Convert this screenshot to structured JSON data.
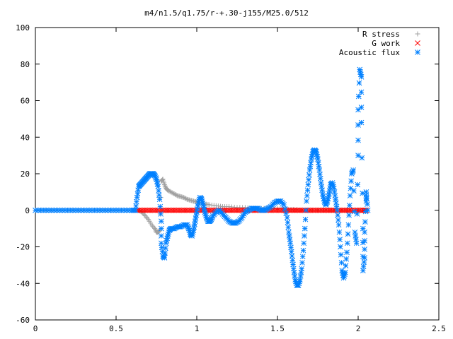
{
  "chart_data": {
    "type": "scatter",
    "title": "m4/n1.5/q1.75/r-+.30-j155/M25.0/512",
    "xlabel": "",
    "ylabel": "",
    "xlim": [
      0,
      2.5
    ],
    "ylim": [
      -60,
      100
    ],
    "grid": false,
    "legend_position": "top-right",
    "x_ticks": [
      0,
      0.5,
      1,
      1.5,
      2,
      2.5
    ],
    "x_tick_labels": [
      "0",
      "0.5",
      "1",
      "1.5",
      "2",
      "2.5"
    ],
    "y_ticks": [
      -60,
      -40,
      -20,
      0,
      20,
      40,
      60,
      80,
      100
    ],
    "y_tick_labels": [
      "-60",
      "-40",
      "-20",
      "0",
      "20",
      "40",
      "60",
      "80",
      "100"
    ],
    "series": [
      {
        "name": "R stress",
        "marker": "plus",
        "color": "#a0a0a0",
        "points": [
          [
            0.0,
            0
          ],
          [
            0.1,
            0
          ],
          [
            0.2,
            0
          ],
          [
            0.3,
            0
          ],
          [
            0.4,
            0
          ],
          [
            0.5,
            0
          ],
          [
            0.6,
            0
          ],
          [
            0.64,
            0
          ],
          [
            0.66,
            -1
          ],
          [
            0.68,
            -3
          ],
          [
            0.7,
            -5
          ],
          [
            0.72,
            -8
          ],
          [
            0.74,
            -10
          ],
          [
            0.75,
            -12
          ],
          [
            0.76,
            -12
          ],
          [
            0.77,
            -11
          ],
          [
            0.78,
            16
          ],
          [
            0.79,
            17
          ],
          [
            0.8,
            14
          ],
          [
            0.81,
            12
          ],
          [
            0.82,
            11
          ],
          [
            0.84,
            10
          ],
          [
            0.86,
            9
          ],
          [
            0.88,
            8
          ],
          [
            0.9,
            7.5
          ],
          [
            0.92,
            7
          ],
          [
            0.94,
            6
          ],
          [
            0.96,
            5.5
          ],
          [
            0.98,
            5
          ],
          [
            1.0,
            4.5
          ],
          [
            1.02,
            4
          ],
          [
            1.05,
            3.5
          ],
          [
            1.08,
            3
          ],
          [
            1.12,
            2.5
          ],
          [
            1.16,
            2
          ],
          [
            1.2,
            2
          ],
          [
            1.25,
            1.5
          ],
          [
            1.3,
            1.5
          ],
          [
            1.35,
            1
          ],
          [
            1.4,
            1
          ],
          [
            1.45,
            1
          ],
          [
            1.5,
            1
          ],
          [
            1.55,
            0.5
          ],
          [
            1.6,
            0.5
          ],
          [
            1.65,
            0
          ],
          [
            1.7,
            0
          ],
          [
            1.75,
            0
          ],
          [
            1.8,
            0
          ],
          [
            1.85,
            0
          ],
          [
            1.9,
            0
          ],
          [
            1.95,
            0
          ],
          [
            2.0,
            0
          ],
          [
            2.05,
            0
          ]
        ]
      },
      {
        "name": "G work",
        "marker": "cross",
        "color": "#ff0000",
        "points": [
          [
            0.62,
            0
          ],
          [
            0.65,
            0
          ],
          [
            0.68,
            0
          ],
          [
            0.71,
            0
          ],
          [
            0.74,
            0
          ],
          [
            0.77,
            0
          ],
          [
            0.8,
            0
          ],
          [
            0.83,
            0
          ],
          [
            0.86,
            0
          ],
          [
            0.89,
            0
          ],
          [
            0.92,
            0
          ],
          [
            0.95,
            0
          ],
          [
            0.98,
            0
          ],
          [
            1.01,
            0
          ],
          [
            1.04,
            0
          ],
          [
            1.07,
            0
          ],
          [
            1.1,
            0
          ],
          [
            1.13,
            0
          ],
          [
            1.16,
            0
          ],
          [
            1.19,
            0
          ],
          [
            1.22,
            0
          ],
          [
            1.25,
            0
          ],
          [
            1.28,
            0
          ],
          [
            1.31,
            0
          ],
          [
            1.34,
            0
          ],
          [
            1.37,
            0
          ],
          [
            1.4,
            0
          ],
          [
            1.43,
            0
          ],
          [
            1.46,
            0
          ],
          [
            1.49,
            0
          ],
          [
            1.52,
            0
          ],
          [
            1.55,
            0
          ],
          [
            1.58,
            0
          ],
          [
            1.61,
            0
          ],
          [
            1.64,
            0
          ],
          [
            1.67,
            0
          ],
          [
            1.7,
            0
          ],
          [
            1.73,
            0
          ],
          [
            1.76,
            0
          ],
          [
            1.79,
            0
          ],
          [
            1.82,
            0
          ],
          [
            1.85,
            0
          ],
          [
            1.88,
            0
          ],
          [
            1.91,
            0
          ],
          [
            1.94,
            0
          ],
          [
            1.97,
            0
          ],
          [
            2.0,
            0
          ],
          [
            2.03,
            0
          ],
          [
            2.05,
            0
          ]
        ]
      },
      {
        "name": "Acoustic flux",
        "marker": "star",
        "color": "#0080ff",
        "points": [
          [
            0.0,
            0
          ],
          [
            0.05,
            0
          ],
          [
            0.1,
            0
          ],
          [
            0.15,
            0
          ],
          [
            0.2,
            0
          ],
          [
            0.25,
            0
          ],
          [
            0.3,
            0
          ],
          [
            0.35,
            0
          ],
          [
            0.4,
            0
          ],
          [
            0.45,
            0
          ],
          [
            0.5,
            0
          ],
          [
            0.55,
            0
          ],
          [
            0.6,
            0
          ],
          [
            0.62,
            0
          ],
          [
            0.63,
            7
          ],
          [
            0.64,
            13
          ],
          [
            0.65,
            14
          ],
          [
            0.66,
            15
          ],
          [
            0.67,
            16
          ],
          [
            0.68,
            17
          ],
          [
            0.69,
            18
          ],
          [
            0.7,
            19
          ],
          [
            0.71,
            20
          ],
          [
            0.72,
            20
          ],
          [
            0.73,
            20
          ],
          [
            0.74,
            19
          ],
          [
            0.75,
            17
          ],
          [
            0.76,
            13
          ],
          [
            0.77,
            6
          ],
          [
            0.78,
            -6
          ],
          [
            0.78,
            -18
          ],
          [
            0.79,
            -25
          ],
          [
            0.8,
            -26
          ],
          [
            0.81,
            -18
          ],
          [
            0.82,
            -14
          ],
          [
            0.83,
            -11
          ],
          [
            0.84,
            -10
          ],
          [
            0.86,
            -10
          ],
          [
            0.88,
            -9
          ],
          [
            0.9,
            -9
          ],
          [
            0.92,
            -8
          ],
          [
            0.94,
            -8
          ],
          [
            0.95,
            -10
          ],
          [
            0.96,
            -13
          ],
          [
            0.97,
            -14
          ],
          [
            0.98,
            -11
          ],
          [
            0.99,
            -6
          ],
          [
            1.0,
            -1
          ],
          [
            1.01,
            4
          ],
          [
            1.02,
            7
          ],
          [
            1.03,
            6
          ],
          [
            1.04,
            3
          ],
          [
            1.05,
            -1
          ],
          [
            1.06,
            -4
          ],
          [
            1.07,
            -6
          ],
          [
            1.08,
            -6
          ],
          [
            1.09,
            -5
          ],
          [
            1.1,
            -3
          ],
          [
            1.12,
            -1
          ],
          [
            1.14,
            0
          ],
          [
            1.16,
            -2
          ],
          [
            1.18,
            -4
          ],
          [
            1.2,
            -6
          ],
          [
            1.22,
            -7
          ],
          [
            1.24,
            -7
          ],
          [
            1.26,
            -6
          ],
          [
            1.28,
            -4
          ],
          [
            1.3,
            -1
          ],
          [
            1.32,
            0
          ],
          [
            1.34,
            1
          ],
          [
            1.36,
            1
          ],
          [
            1.38,
            1
          ],
          [
            1.4,
            0
          ],
          [
            1.42,
            0
          ],
          [
            1.44,
            1
          ],
          [
            1.46,
            2
          ],
          [
            1.48,
            4
          ],
          [
            1.5,
            5
          ],
          [
            1.52,
            5
          ],
          [
            1.54,
            3
          ],
          [
            1.56,
            -4
          ],
          [
            1.57,
            -12
          ],
          [
            1.58,
            -18
          ],
          [
            1.59,
            -25
          ],
          [
            1.6,
            -32
          ],
          [
            1.61,
            -38
          ],
          [
            1.62,
            -41
          ],
          [
            1.63,
            -41
          ],
          [
            1.64,
            -38
          ],
          [
            1.65,
            -32
          ],
          [
            1.66,
            -22
          ],
          [
            1.67,
            -10
          ],
          [
            1.68,
            5
          ],
          [
            1.69,
            14
          ],
          [
            1.7,
            22
          ],
          [
            1.71,
            28
          ],
          [
            1.72,
            32
          ],
          [
            1.73,
            33
          ],
          [
            1.74,
            32
          ],
          [
            1.75,
            28
          ],
          [
            1.76,
            22
          ],
          [
            1.77,
            15
          ],
          [
            1.78,
            9
          ],
          [
            1.79,
            5
          ],
          [
            1.8,
            3
          ],
          [
            1.81,
            5
          ],
          [
            1.82,
            9
          ],
          [
            1.83,
            14
          ],
          [
            1.84,
            15
          ],
          [
            1.85,
            12
          ],
          [
            1.86,
            6
          ],
          [
            1.87,
            0
          ],
          [
            1.88,
            -8
          ],
          [
            1.89,
            -20
          ],
          [
            1.9,
            -33
          ],
          [
            1.91,
            -37
          ],
          [
            1.92,
            -34
          ],
          [
            1.93,
            -23
          ],
          [
            1.94,
            -8
          ],
          [
            1.95,
            8
          ],
          [
            1.96,
            20
          ],
          [
            1.97,
            22
          ],
          [
            1.98,
            -12
          ],
          [
            1.99,
            -18
          ],
          [
            2.0,
            30
          ],
          [
            2.0,
            55
          ],
          [
            2.01,
            77
          ],
          [
            2.02,
            73
          ],
          [
            2.02,
            48
          ],
          [
            2.03,
            -10
          ],
          [
            2.03,
            -33
          ],
          [
            2.04,
            -26
          ],
          [
            2.04,
            -12
          ],
          [
            2.05,
            5
          ],
          [
            2.05,
            10
          ],
          [
            2.06,
            0
          ]
        ]
      }
    ]
  }
}
